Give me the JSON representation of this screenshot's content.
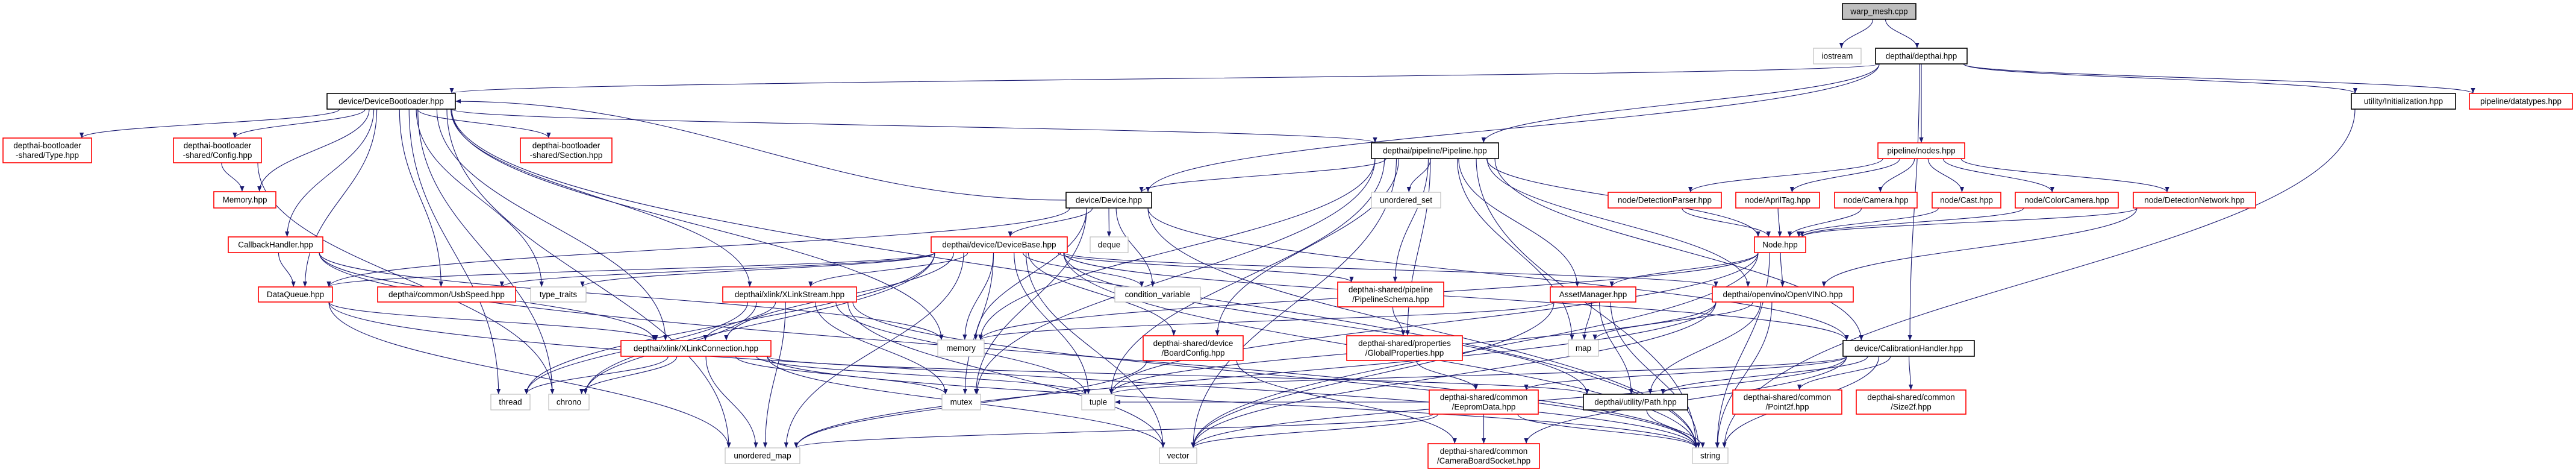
{
  "colors": {
    "edge": "#191970",
    "root_fill": "#bfbfbf",
    "documented_border": "#000000",
    "truncated_border": "#ff0000",
    "system_border": "#bfbfbf"
  },
  "nodes": [
    {
      "id": "warp",
      "lines": [
        "warp_mesh.cpp"
      ],
      "kind": "root"
    },
    {
      "id": "iostream",
      "lines": [
        "iostream"
      ],
      "kind": "system"
    },
    {
      "id": "depthai",
      "lines": [
        "depthai/depthai.hpp"
      ],
      "kind": "documented"
    },
    {
      "id": "bootloader",
      "lines": [
        "device/DeviceBootloader.hpp"
      ],
      "kind": "documented"
    },
    {
      "id": "initialization",
      "lines": [
        "utility/Initialization.hpp"
      ],
      "kind": "documented"
    },
    {
      "id": "datatypes",
      "lines": [
        "pipeline/datatypes.hpp"
      ],
      "kind": "truncated"
    },
    {
      "id": "bl_type",
      "lines": [
        "depthai-bootloader",
        "-shared/Type.hpp"
      ],
      "kind": "truncated"
    },
    {
      "id": "bl_config",
      "lines": [
        "depthai-bootloader",
        "-shared/Config.hpp"
      ],
      "kind": "truncated"
    },
    {
      "id": "bl_section",
      "lines": [
        "depthai-bootloader",
        "-shared/Section.hpp"
      ],
      "kind": "truncated"
    },
    {
      "id": "pipeline",
      "lines": [
        "depthai/pipeline/Pipeline.hpp"
      ],
      "kind": "documented"
    },
    {
      "id": "nodes",
      "lines": [
        "pipeline/nodes.hpp"
      ],
      "kind": "truncated"
    },
    {
      "id": "memory_hpp",
      "lines": [
        "Memory.hpp"
      ],
      "kind": "truncated"
    },
    {
      "id": "device",
      "lines": [
        "device/Device.hpp"
      ],
      "kind": "documented"
    },
    {
      "id": "unordered_set",
      "lines": [
        "unordered_set"
      ],
      "kind": "system"
    },
    {
      "id": "detectionparser",
      "lines": [
        "node/DetectionParser.hpp"
      ],
      "kind": "truncated"
    },
    {
      "id": "apriltag",
      "lines": [
        "node/AprilTag.hpp"
      ],
      "kind": "truncated"
    },
    {
      "id": "camera",
      "lines": [
        "node/Camera.hpp"
      ],
      "kind": "truncated"
    },
    {
      "id": "cast",
      "lines": [
        "node/Cast.hpp"
      ],
      "kind": "truncated"
    },
    {
      "id": "colorcamera",
      "lines": [
        "node/ColorCamera.hpp"
      ],
      "kind": "truncated"
    },
    {
      "id": "detectionnetwork",
      "lines": [
        "node/DetectionNetwork.hpp"
      ],
      "kind": "truncated"
    },
    {
      "id": "callback",
      "lines": [
        "CallbackHandler.hpp"
      ],
      "kind": "truncated"
    },
    {
      "id": "devicebase",
      "lines": [
        "depthai/device/DeviceBase.hpp"
      ],
      "kind": "truncated"
    },
    {
      "id": "deque",
      "lines": [
        "deque"
      ],
      "kind": "system"
    },
    {
      "id": "node_hpp",
      "lines": [
        "Node.hpp"
      ],
      "kind": "truncated"
    },
    {
      "id": "dataqueue",
      "lines": [
        "DataQueue.hpp"
      ],
      "kind": "truncated"
    },
    {
      "id": "usbspeed",
      "lines": [
        "depthai/common/UsbSpeed.hpp"
      ],
      "kind": "truncated"
    },
    {
      "id": "type_traits",
      "lines": [
        "type_traits"
      ],
      "kind": "system"
    },
    {
      "id": "xlinkstream",
      "lines": [
        "depthai/xlink/XLinkStream.hpp"
      ],
      "kind": "truncated"
    },
    {
      "id": "condition_variable",
      "lines": [
        "condition_variable"
      ],
      "kind": "system"
    },
    {
      "id": "pipelineschema",
      "lines": [
        "depthai-shared/pipeline",
        "/PipelineSchema.hpp"
      ],
      "kind": "truncated"
    },
    {
      "id": "assetmanager",
      "lines": [
        "AssetManager.hpp"
      ],
      "kind": "truncated"
    },
    {
      "id": "openvino",
      "lines": [
        "depthai/openvino/OpenVINO.hpp"
      ],
      "kind": "truncated"
    },
    {
      "id": "xlinkconn",
      "lines": [
        "depthai/xlink/XLinkConnection.hpp"
      ],
      "kind": "truncated"
    },
    {
      "id": "memory",
      "lines": [
        "memory"
      ],
      "kind": "system"
    },
    {
      "id": "boardconfig",
      "lines": [
        "depthai-shared/device",
        "/BoardConfig.hpp"
      ],
      "kind": "truncated"
    },
    {
      "id": "globalprops",
      "lines": [
        "depthai-shared/properties",
        "/GlobalProperties.hpp"
      ],
      "kind": "truncated"
    },
    {
      "id": "map",
      "lines": [
        "map"
      ],
      "kind": "system"
    },
    {
      "id": "calib",
      "lines": [
        "device/CalibrationHandler.hpp"
      ],
      "kind": "documented"
    },
    {
      "id": "thread",
      "lines": [
        "thread"
      ],
      "kind": "system"
    },
    {
      "id": "chrono",
      "lines": [
        "chrono"
      ],
      "kind": "system"
    },
    {
      "id": "mutex",
      "lines": [
        "mutex"
      ],
      "kind": "system"
    },
    {
      "id": "tuple",
      "lines": [
        "tuple"
      ],
      "kind": "system"
    },
    {
      "id": "eeprom",
      "lines": [
        "depthai-shared/common",
        "/EepromData.hpp"
      ],
      "kind": "truncated"
    },
    {
      "id": "path",
      "lines": [
        "depthai/utility/Path.hpp"
      ],
      "kind": "documented"
    },
    {
      "id": "point2f",
      "lines": [
        "depthai-shared/common",
        "/Point2f.hpp"
      ],
      "kind": "truncated"
    },
    {
      "id": "size2f",
      "lines": [
        "depthai-shared/common",
        "/Size2f.hpp"
      ],
      "kind": "truncated"
    },
    {
      "id": "unordered_map",
      "lines": [
        "unordered_map"
      ],
      "kind": "system"
    },
    {
      "id": "vector",
      "lines": [
        "vector"
      ],
      "kind": "system"
    },
    {
      "id": "camerasocket",
      "lines": [
        "depthai-shared/common",
        "/CameraBoardSocket.hpp"
      ],
      "kind": "truncated"
    },
    {
      "id": "string",
      "lines": [
        "string"
      ],
      "kind": "system"
    }
  ],
  "edges": [
    [
      "warp",
      "iostream"
    ],
    [
      "warp",
      "depthai"
    ],
    [
      "depthai",
      "bootloader"
    ],
    [
      "depthai",
      "device"
    ],
    [
      "depthai",
      "pipeline"
    ],
    [
      "depthai",
      "nodes"
    ],
    [
      "depthai",
      "initialization"
    ],
    [
      "depthai",
      "datatypes"
    ],
    [
      "depthai",
      "calib"
    ],
    [
      "initialization",
      "string"
    ],
    [
      "bootloader",
      "bl_type"
    ],
    [
      "bootloader",
      "bl_config"
    ],
    [
      "bootloader",
      "memory_hpp"
    ],
    [
      "bootloader",
      "bl_section"
    ],
    [
      "bootloader",
      "callback"
    ],
    [
      "bootloader",
      "dataqueue"
    ],
    [
      "bootloader",
      "usbspeed"
    ],
    [
      "bootloader",
      "type_traits"
    ],
    [
      "bootloader",
      "xlinkstream"
    ],
    [
      "bootloader",
      "xlinkconn"
    ],
    [
      "bootloader",
      "thread"
    ],
    [
      "bootloader",
      "chrono"
    ],
    [
      "bootloader",
      "unordered_map"
    ],
    [
      "bootloader",
      "pipeline"
    ],
    [
      "bootloader",
      "memory"
    ],
    [
      "bootloader",
      "string"
    ],
    [
      "bl_config",
      "memory_hpp"
    ],
    [
      "bl_config",
      "chrono"
    ],
    [
      "callback",
      "dataqueue"
    ],
    [
      "callback",
      "memory"
    ],
    [
      "callback",
      "xlinkconn"
    ],
    [
      "callback",
      "string"
    ],
    [
      "dataqueue",
      "xlinkconn"
    ],
    [
      "dataqueue",
      "unordered_map"
    ],
    [
      "dataqueue",
      "string"
    ],
    [
      "device",
      "devicebase"
    ],
    [
      "device",
      "deque"
    ],
    [
      "device",
      "memory"
    ],
    [
      "device",
      "condition_variable"
    ],
    [
      "device",
      "mutex"
    ],
    [
      "device",
      "dataqueue"
    ],
    [
      "device",
      "string"
    ],
    [
      "device",
      "calib"
    ],
    [
      "device",
      "bootloader"
    ],
    [
      "devicebase",
      "xlinkstream"
    ],
    [
      "devicebase",
      "xlinkconn"
    ],
    [
      "devicebase",
      "usbspeed"
    ],
    [
      "devicebase",
      "type_traits"
    ],
    [
      "devicebase",
      "thread"
    ],
    [
      "devicebase",
      "chrono"
    ],
    [
      "devicebase",
      "memory"
    ],
    [
      "devicebase",
      "mutex"
    ],
    [
      "devicebase",
      "tuple"
    ],
    [
      "devicebase",
      "vector"
    ],
    [
      "devicebase",
      "unordered_map"
    ],
    [
      "devicebase",
      "condition_variable"
    ],
    [
      "devicebase",
      "boardconfig"
    ],
    [
      "devicebase",
      "pipelineschema"
    ],
    [
      "devicebase",
      "openvino"
    ],
    [
      "devicebase",
      "calib"
    ],
    [
      "devicebase",
      "path"
    ],
    [
      "devicebase",
      "string"
    ],
    [
      "devicebase",
      "dataqueue"
    ],
    [
      "pipeline",
      "device"
    ],
    [
      "pipeline",
      "unordered_set"
    ],
    [
      "pipeline",
      "node_hpp"
    ],
    [
      "pipeline",
      "assetmanager"
    ],
    [
      "pipeline",
      "openvino"
    ],
    [
      "pipeline",
      "pipelineschema"
    ],
    [
      "pipeline",
      "globalprops"
    ],
    [
      "pipeline",
      "boardconfig"
    ],
    [
      "pipeline",
      "memory"
    ],
    [
      "pipeline",
      "vector"
    ],
    [
      "pipeline",
      "map"
    ],
    [
      "pipeline",
      "tuple"
    ],
    [
      "pipeline",
      "string"
    ],
    [
      "pipeline",
      "calib"
    ],
    [
      "pipeline",
      "mutex"
    ],
    [
      "nodes",
      "detectionparser"
    ],
    [
      "nodes",
      "apriltag"
    ],
    [
      "nodes",
      "camera"
    ],
    [
      "nodes",
      "cast"
    ],
    [
      "nodes",
      "colorcamera"
    ],
    [
      "nodes",
      "detectionnetwork"
    ],
    [
      "detectionparser",
      "node_hpp"
    ],
    [
      "apriltag",
      "node_hpp"
    ],
    [
      "camera",
      "node_hpp"
    ],
    [
      "cast",
      "node_hpp"
    ],
    [
      "colorcamera",
      "node_hpp"
    ],
    [
      "detectionnetwork",
      "node_hpp"
    ],
    [
      "detectionnetwork",
      "openvino"
    ],
    [
      "node_hpp",
      "openvino"
    ],
    [
      "node_hpp",
      "assetmanager"
    ],
    [
      "node_hpp",
      "memory"
    ],
    [
      "node_hpp",
      "string"
    ],
    [
      "node_hpp",
      "tuple"
    ],
    [
      "node_hpp",
      "vector"
    ],
    [
      "assetmanager",
      "memory"
    ],
    [
      "assetmanager",
      "map"
    ],
    [
      "assetmanager",
      "path"
    ],
    [
      "assetmanager",
      "vector"
    ],
    [
      "assetmanager",
      "string"
    ],
    [
      "openvino",
      "map"
    ],
    [
      "openvino",
      "vector"
    ],
    [
      "openvino",
      "path"
    ],
    [
      "openvino",
      "string"
    ],
    [
      "openvino",
      "tuple"
    ],
    [
      "openvino",
      "unordered_map"
    ],
    [
      "xlinkstream",
      "xlinkconn"
    ],
    [
      "xlinkstream",
      "thread"
    ],
    [
      "xlinkstream",
      "chrono"
    ],
    [
      "xlinkstream",
      "unordered_map"
    ],
    [
      "xlinkstream",
      "mutex"
    ],
    [
      "xlinkstream",
      "vector"
    ],
    [
      "xlinkstream",
      "tuple"
    ],
    [
      "xlinkstream",
      "string"
    ],
    [
      "xlinkconn",
      "thread"
    ],
    [
      "xlinkconn",
      "chrono"
    ],
    [
      "xlinkconn",
      "unordered_map"
    ],
    [
      "xlinkconn",
      "mutex"
    ],
    [
      "xlinkconn",
      "tuple"
    ],
    [
      "xlinkconn",
      "vector"
    ],
    [
      "xlinkconn",
      "string"
    ],
    [
      "xlinkconn",
      "path"
    ],
    [
      "boardconfig",
      "unordered_map"
    ],
    [
      "boardconfig",
      "camerasocket"
    ],
    [
      "pipelineschema",
      "globalprops"
    ],
    [
      "globalprops",
      "eeprom"
    ],
    [
      "eeprom",
      "camerasocket"
    ],
    [
      "eeprom",
      "vector"
    ],
    [
      "eeprom",
      "unordered_map"
    ],
    [
      "eeprom",
      "string"
    ],
    [
      "eeprom",
      "tuple"
    ],
    [
      "path",
      "string"
    ],
    [
      "calib",
      "point2f"
    ],
    [
      "calib",
      "size2f"
    ],
    [
      "calib",
      "eeprom"
    ],
    [
      "calib",
      "path"
    ],
    [
      "calib",
      "tuple"
    ],
    [
      "calib",
      "vector"
    ],
    [
      "calib",
      "string"
    ],
    [
      "calib",
      "camerasocket"
    ]
  ]
}
